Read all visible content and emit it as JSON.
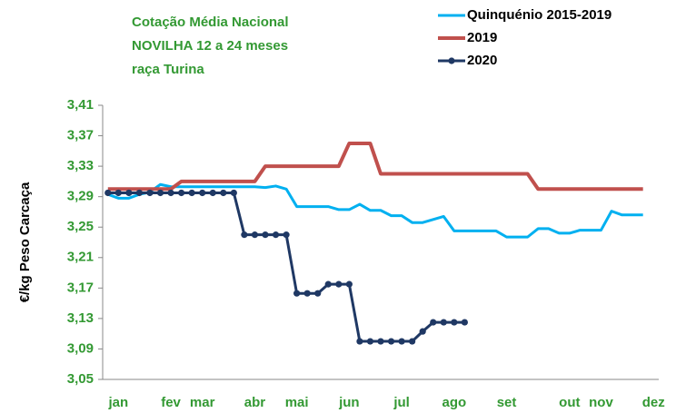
{
  "chart_data": {
    "type": "line",
    "title": [
      "Cotação Média Nacional",
      "NOVILHA 12 a 24 meses",
      "raça Turina"
    ],
    "title_color": "#339933",
    "y_label": "€/kg Peso Carcaça",
    "categories": [
      null,
      "jan",
      null,
      null,
      null,
      null,
      "fev",
      null,
      null,
      "mar",
      null,
      null,
      null,
      null,
      "abr",
      null,
      null,
      null,
      "mai",
      null,
      null,
      null,
      null,
      "jun",
      null,
      null,
      null,
      null,
      "jul",
      null,
      null,
      null,
      null,
      "ago",
      null,
      null,
      null,
      null,
      "set",
      null,
      null,
      null,
      null,
      null,
      "out",
      null,
      null,
      "nov",
      null,
      null,
      null,
      null,
      "dez"
    ],
    "ylim": [
      3.05,
      3.41
    ],
    "yticks": [
      {
        "value": 3.05,
        "label": "3,05"
      },
      {
        "value": 3.09,
        "label": "3,09"
      },
      {
        "value": 3.13,
        "label": "3,13"
      },
      {
        "value": 3.17,
        "label": "3,17"
      },
      {
        "value": 3.21,
        "label": "3,21"
      },
      {
        "value": 3.25,
        "label": "3,25"
      },
      {
        "value": 3.29,
        "label": "3,29"
      },
      {
        "value": 3.33,
        "label": "3,33"
      },
      {
        "value": 3.37,
        "label": "3,37"
      },
      {
        "value": 3.41,
        "label": "3,41"
      }
    ],
    "grid": false,
    "legend_position": "top-right",
    "series": [
      {
        "name": "Quinquénio 2015-2019",
        "color": "#00b0f0",
        "marker": false,
        "values": [
          3.293,
          3.288,
          3.288,
          3.293,
          3.296,
          3.306,
          3.303,
          3.303,
          3.303,
          3.303,
          3.303,
          3.303,
          3.303,
          3.303,
          3.303,
          3.302,
          3.304,
          3.3,
          3.277,
          3.277,
          3.277,
          3.277,
          3.273,
          3.273,
          3.28,
          3.272,
          3.272,
          3.265,
          3.265,
          3.256,
          3.256,
          3.26,
          3.264,
          3.245,
          3.245,
          3.245,
          3.245,
          3.245,
          3.237,
          3.237,
          3.237,
          3.248,
          3.248,
          3.242,
          3.242,
          3.246,
          3.246,
          3.246,
          3.271,
          3.266,
          3.266,
          3.266,
          null
        ]
      },
      {
        "name": "2019",
        "color": "#c0504d",
        "marker": false,
        "values": [
          3.3,
          3.3,
          3.3,
          3.3,
          3.3,
          3.3,
          3.3,
          3.31,
          3.31,
          3.31,
          3.31,
          3.31,
          3.31,
          3.31,
          3.31,
          3.33,
          3.33,
          3.33,
          3.33,
          3.33,
          3.33,
          3.33,
          3.33,
          3.36,
          3.36,
          3.36,
          3.32,
          3.32,
          3.32,
          3.32,
          3.32,
          3.32,
          3.32,
          3.32,
          3.32,
          3.32,
          3.32,
          3.32,
          3.32,
          3.32,
          3.32,
          3.3,
          3.3,
          3.3,
          3.3,
          3.3,
          3.3,
          3.3,
          3.3,
          3.3,
          3.3,
          3.3,
          null
        ]
      },
      {
        "name": "2020",
        "color": "#1f3864",
        "marker": true,
        "values": [
          3.295,
          3.295,
          3.295,
          3.295,
          3.295,
          3.295,
          3.295,
          3.295,
          3.295,
          3.295,
          3.295,
          3.295,
          3.295,
          3.24,
          3.24,
          3.24,
          3.24,
          3.24,
          3.163,
          3.163,
          3.163,
          3.175,
          3.175,
          3.175,
          3.1,
          3.1,
          3.1,
          3.1,
          3.1,
          3.1,
          3.113,
          3.125,
          3.125,
          3.125,
          3.125,
          null,
          null,
          null,
          null,
          null,
          null,
          null,
          null,
          null,
          null,
          null,
          null,
          null,
          null,
          null,
          null,
          null,
          null
        ]
      }
    ]
  }
}
